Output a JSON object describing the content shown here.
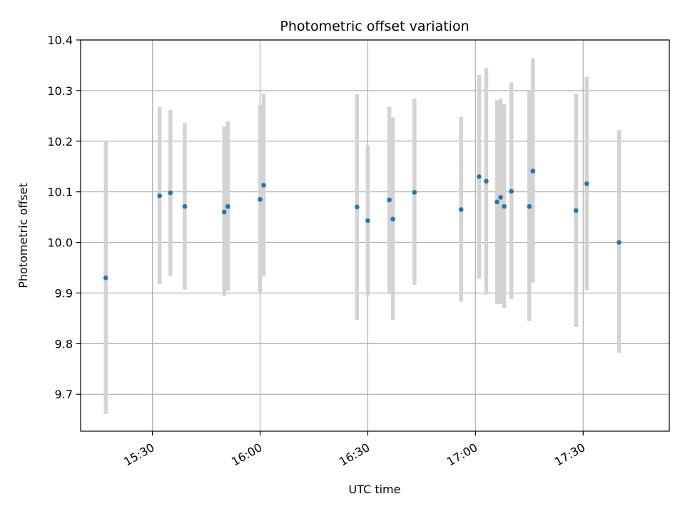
{
  "chart_data": {
    "type": "scatter",
    "title": "Photometric offset variation",
    "xlabel": "UTC time",
    "ylabel": "Photometric offset",
    "x_ticks": [
      "15:30",
      "16:00",
      "16:30",
      "17:00",
      "17:30"
    ],
    "x_tick_minutes": [
      930,
      960,
      990,
      1020,
      1050
    ],
    "y_ticks": [
      "9.7",
      "9.8",
      "9.9",
      "10.0",
      "10.1",
      "10.2",
      "10.3",
      "10.4"
    ],
    "y_tick_values": [
      9.7,
      9.8,
      9.9,
      10.0,
      10.1,
      10.2,
      10.3,
      10.4
    ],
    "xlim": [
      "15:10",
      "17:54"
    ],
    "ylim": [
      9.627,
      10.4
    ],
    "grid": true,
    "colors": {
      "points": "#1f77b4",
      "error_bars": "#d3d3d3",
      "grid": "#b0b0b0"
    },
    "series": [
      {
        "x": [
          "15:17",
          "15:32",
          "15:35",
          "15:39",
          "15:50",
          "15:51",
          "16:00",
          "16:01",
          "16:27",
          "16:30",
          "16:36",
          "16:37",
          "16:43",
          "16:56",
          "17:01",
          "17:03",
          "17:06",
          "17:07",
          "17:08",
          "17:10",
          "17:15",
          "17:16",
          "17:28",
          "17:31",
          "17:40"
        ],
        "y": [
          9.93,
          10.092,
          10.098,
          10.071,
          10.06,
          10.071,
          10.085,
          10.113,
          10.07,
          10.043,
          10.084,
          10.046,
          10.099,
          10.065,
          10.13,
          10.121,
          10.08,
          10.089,
          10.071,
          10.101,
          10.071,
          10.141,
          10.063,
          10.116,
          10.0
        ],
        "error_low": [
          9.661,
          9.917,
          9.934,
          9.907,
          9.894,
          9.905,
          9.902,
          9.933,
          9.847,
          9.895,
          9.898,
          9.847,
          9.916,
          9.883,
          9.928,
          9.897,
          9.878,
          9.879,
          9.87,
          9.888,
          9.845,
          9.921,
          9.833,
          9.906,
          9.782
        ],
        "error_high": [
          10.2,
          10.268,
          10.262,
          10.236,
          10.229,
          10.239,
          10.272,
          10.294,
          10.293,
          10.192,
          10.268,
          10.247,
          10.284,
          10.248,
          10.331,
          10.345,
          10.281,
          10.284,
          10.273,
          10.316,
          10.3,
          10.364,
          10.294,
          10.327,
          10.222
        ]
      }
    ]
  }
}
